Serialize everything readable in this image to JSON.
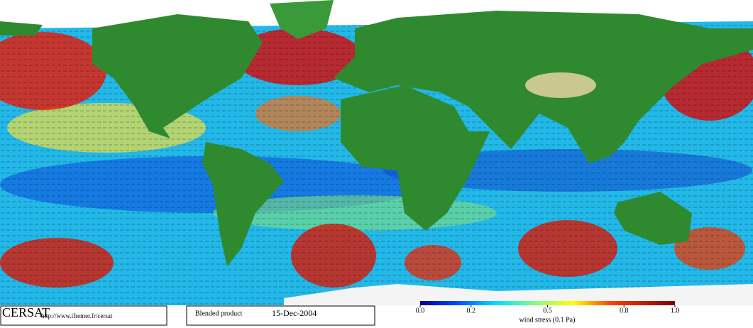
{
  "footer": {
    "logo": "CERSAT",
    "url": "http://www.ifremer.fr/cersat",
    "product": "Blended product",
    "date": "15-Dec-2004"
  },
  "colorbar": {
    "label": "wind stress (0.1 Pa)",
    "range": [
      0,
      1
    ],
    "ticks": [
      {
        "value": 0,
        "label": "0.0"
      },
      {
        "value": 0.2,
        "label": "0.2"
      },
      {
        "value": 0.5,
        "label": "0.5"
      },
      {
        "value": 0.8,
        "label": "0.8"
      },
      {
        "value": 1,
        "label": "1.0"
      }
    ]
  }
}
